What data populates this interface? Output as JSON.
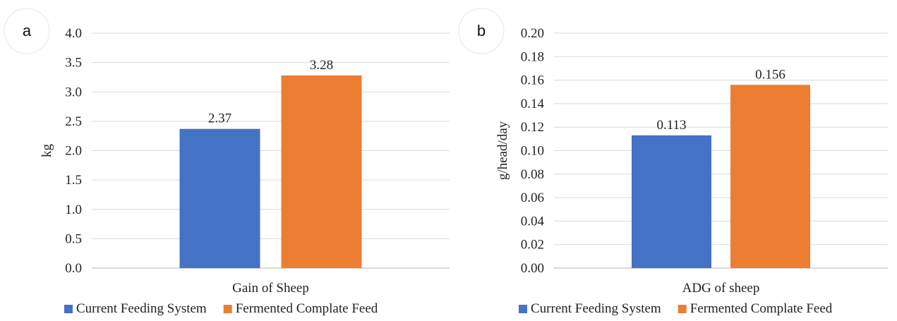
{
  "chart_data": [
    {
      "type": "bar",
      "panel_label": "a",
      "categories": [
        "Gain of Sheep"
      ],
      "series": [
        {
          "name": "Current Feeding System",
          "values": [
            2.37
          ],
          "color": "#4472C4",
          "label": "2.37"
        },
        {
          "name": "Fermented Complate Feed",
          "values": [
            3.28
          ],
          "color": "#ED7D31",
          "label": "3.28"
        }
      ],
      "xlabel": "",
      "ylabel": "kg",
      "ylim": [
        0,
        4.0
      ],
      "yticks": [
        "0.0",
        "0.5",
        "1.0",
        "1.5",
        "2.0",
        "2.5",
        "3.0",
        "3.5",
        "4.0"
      ],
      "grid": true,
      "legend_position": "bottom"
    },
    {
      "type": "bar",
      "panel_label": "b",
      "categories": [
        "ADG of sheep"
      ],
      "series": [
        {
          "name": "Current Feeding System",
          "values": [
            0.113
          ],
          "color": "#4472C4",
          "label": "0.113"
        },
        {
          "name": "Fermented Complate Feed",
          "values": [
            0.156
          ],
          "color": "#ED7D31",
          "label": "0.156"
        }
      ],
      "xlabel": "",
      "ylabel": "g/head/day",
      "ylim": [
        0,
        0.2
      ],
      "yticks": [
        "0.00",
        "0.02",
        "0.04",
        "0.06",
        "0.08",
        "0.10",
        "0.12",
        "0.14",
        "0.16",
        "0.18",
        "0.20"
      ],
      "grid": true,
      "legend_position": "bottom"
    }
  ]
}
